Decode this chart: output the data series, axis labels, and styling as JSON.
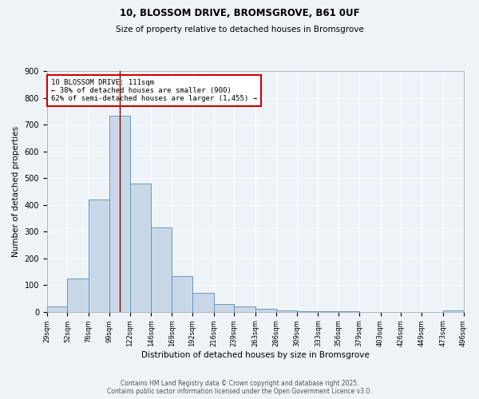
{
  "title_line1": "10, BLOSSOM DRIVE, BROMSGROVE, B61 0UF",
  "title_line2": "Size of property relative to detached houses in Bromsgrove",
  "xlabel": "Distribution of detached houses by size in Bromsgrove",
  "ylabel": "Number of detached properties",
  "bar_color": "#c8d8e8",
  "bar_edge_color": "#6699bb",
  "bin_edges": [
    29,
    52,
    76,
    99,
    122,
    146,
    169,
    192,
    216,
    239,
    263,
    286,
    309,
    333,
    356,
    379,
    403,
    426,
    449,
    473,
    496
  ],
  "bar_heights": [
    20,
    125,
    420,
    735,
    480,
    315,
    135,
    70,
    30,
    20,
    10,
    5,
    3,
    2,
    2,
    0,
    0,
    0,
    0,
    5
  ],
  "tick_labels": [
    "29sqm",
    "52sqm",
    "76sqm",
    "99sqm",
    "122sqm",
    "146sqm",
    "169sqm",
    "192sqm",
    "216sqm",
    "239sqm",
    "263sqm",
    "286sqm",
    "309sqm",
    "333sqm",
    "356sqm",
    "379sqm",
    "403sqm",
    "426sqm",
    "449sqm",
    "473sqm",
    "496sqm"
  ],
  "vline_x": 111,
  "vline_color": "#8b0000",
  "annotation_text": "10 BLOSSOM DRIVE: 111sqm\n← 38% of detached houses are smaller (900)\n62% of semi-detached houses are larger (1,455) →",
  "annotation_box_color": "#ffffff",
  "annotation_box_edge": "#cc0000",
  "ylim": [
    0,
    900
  ],
  "yticks": [
    0,
    100,
    200,
    300,
    400,
    500,
    600,
    700,
    800,
    900
  ],
  "background_color": "#eef3f8",
  "grid_color": "#ffffff",
  "footer_line1": "Contains HM Land Registry data © Crown copyright and database right 2025.",
  "footer_line2": "Contains public sector information licensed under the Open Government Licence v3.0."
}
